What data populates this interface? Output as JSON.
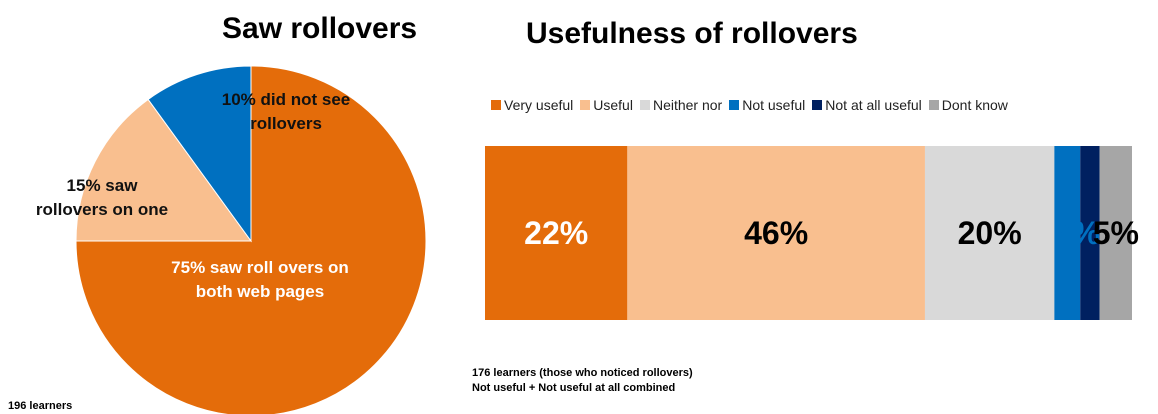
{
  "colors": {
    "very_useful": "#E46C0A",
    "useful": "#F9BF8F",
    "neither_nor": "#D9D9D9",
    "not_useful": "#0070C0",
    "not_at_all_useful": "#002060",
    "dont_know": "#A6A6A6"
  },
  "pie": {
    "title": "Saw rollovers",
    "note": "196 learners",
    "labels": {
      "did_not_see": [
        "10% did not see",
        "rollovers"
      ],
      "saw_one": [
        "15% saw",
        "rollovers on one"
      ],
      "saw_both": [
        "75% saw roll overs on",
        "both web pages"
      ]
    }
  },
  "bar": {
    "title": "Usefulness of rollovers",
    "notes": [
      "176 learners (those who noticed rollovers)",
      "Not useful + Not useful at all combined"
    ],
    "legend": [
      "Very useful",
      "Useful",
      "Neither nor",
      "Not useful",
      "Not at all useful",
      "Dont know"
    ]
  },
  "chart_data": [
    {
      "type": "pie",
      "title": "Saw rollovers",
      "slices": [
        {
          "label": "75% saw roll overs on both web pages",
          "value": 75
        },
        {
          "label": "15% saw rollovers on one",
          "value": 15
        },
        {
          "label": "10% did not see rollovers",
          "value": 10
        }
      ]
    },
    {
      "type": "bar",
      "orientation": "horizontal-stacked",
      "title": "Usefulness of rollovers",
      "legend_position": "top",
      "series": [
        {
          "name": "Very useful",
          "value": 22,
          "label": "22%"
        },
        {
          "name": "Useful",
          "value": 46,
          "label": "46%"
        },
        {
          "name": "Neither nor",
          "value": 20,
          "label": "20%"
        },
        {
          "name": "Not useful",
          "value": 4,
          "label": ""
        },
        {
          "name": "Not at all useful",
          "value": 3,
          "label": "7%"
        },
        {
          "name": "Dont know",
          "value": 5,
          "label": "5%"
        }
      ]
    }
  ]
}
